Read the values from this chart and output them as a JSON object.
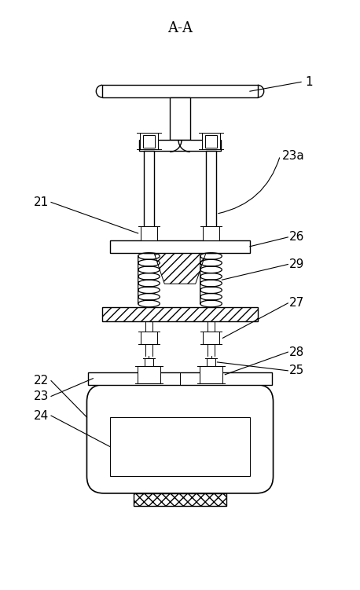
{
  "title": "A-A",
  "figsize": [
    4.58,
    7.51
  ],
  "dpi": 100,
  "background_color": "#ffffff"
}
